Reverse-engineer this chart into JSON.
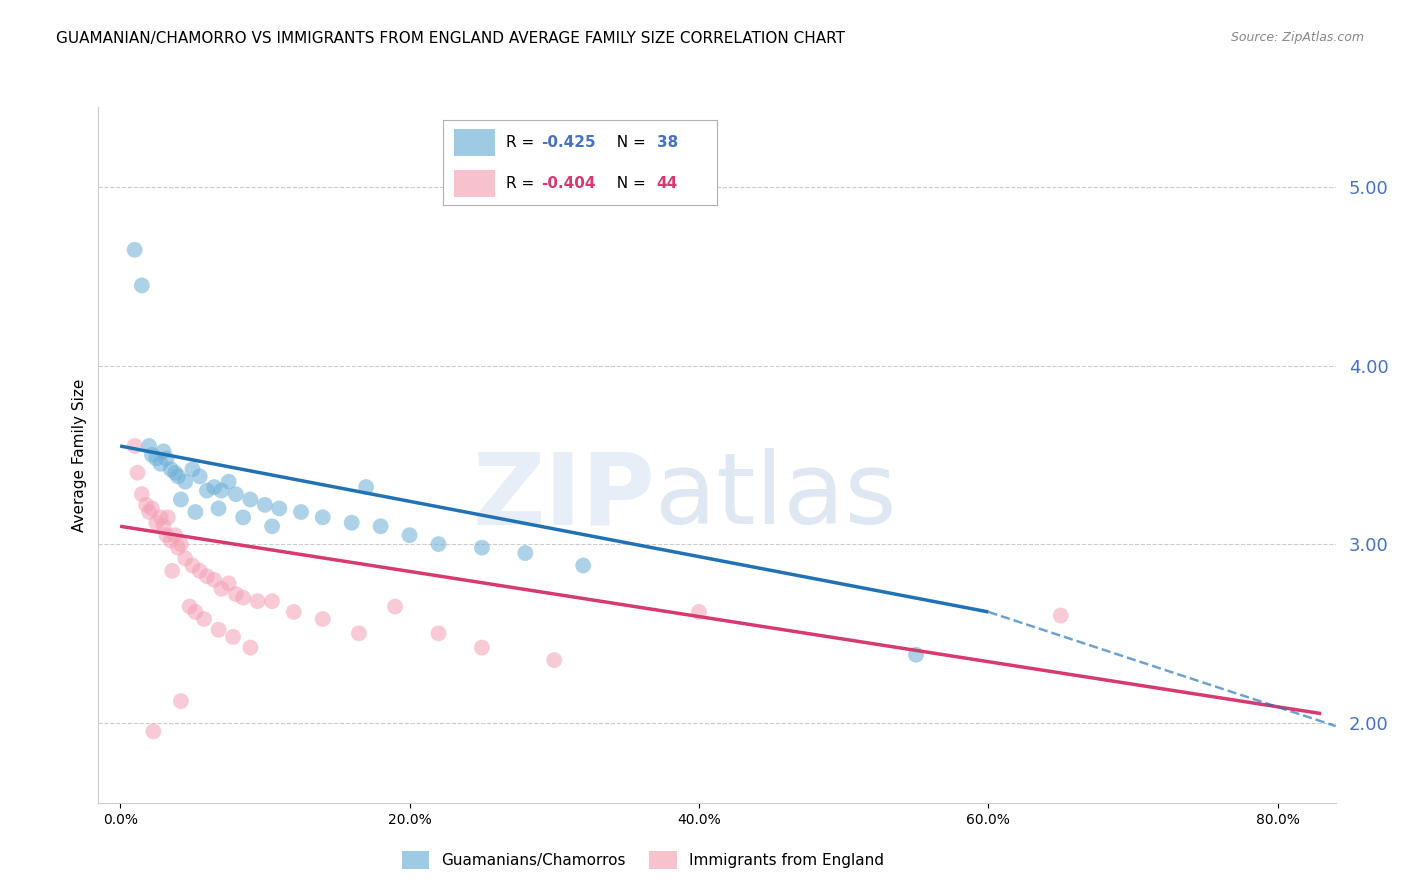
{
  "title": "GUAMANIAN/CHAMORRO VS IMMIGRANTS FROM ENGLAND AVERAGE FAMILY SIZE CORRELATION CHART",
  "source": "Source: ZipAtlas.com",
  "ylabel": "Average Family Size",
  "xlabel_ticks": [
    "0.0%",
    "20.0%",
    "40.0%",
    "60.0%",
    "80.0%"
  ],
  "xlabel_vals": [
    0.0,
    20.0,
    40.0,
    60.0,
    80.0
  ],
  "right_yticks": [
    2.0,
    3.0,
    4.0,
    5.0
  ],
  "ylim": [
    1.55,
    5.45
  ],
  "xlim": [
    -1.5,
    84.0
  ],
  "blue_R": -0.425,
  "blue_N": 38,
  "pink_R": -0.404,
  "pink_N": 44,
  "blue_label": "Guamanians/Chamorros",
  "pink_label": "Immigrants from England",
  "blue_color": "#6baed6",
  "pink_color": "#f4a0b5",
  "blue_line_color": "#2171b5",
  "pink_line_color": "#d63a6e",
  "blue_scatter_x": [
    1.0,
    1.5,
    2.0,
    2.2,
    2.5,
    2.8,
    3.0,
    3.2,
    3.5,
    3.8,
    4.0,
    4.5,
    5.0,
    5.5,
    6.0,
    6.5,
    7.0,
    7.5,
    8.0,
    9.0,
    10.0,
    11.0,
    12.5,
    14.0,
    16.0,
    18.0,
    20.0,
    22.0,
    25.0,
    28.0,
    32.0,
    4.2,
    5.2,
    6.8,
    8.5,
    10.5,
    55.0,
    17.0
  ],
  "blue_scatter_y": [
    4.65,
    4.45,
    3.55,
    3.5,
    3.48,
    3.45,
    3.52,
    3.48,
    3.42,
    3.4,
    3.38,
    3.35,
    3.42,
    3.38,
    3.3,
    3.32,
    3.3,
    3.35,
    3.28,
    3.25,
    3.22,
    3.2,
    3.18,
    3.15,
    3.12,
    3.1,
    3.05,
    3.0,
    2.98,
    2.95,
    2.88,
    3.25,
    3.18,
    3.2,
    3.15,
    3.1,
    2.38,
    3.32
  ],
  "pink_scatter_x": [
    1.0,
    1.2,
    1.5,
    1.8,
    2.0,
    2.2,
    2.5,
    2.8,
    3.0,
    3.2,
    3.5,
    3.8,
    4.0,
    4.2,
    4.5,
    5.0,
    5.5,
    6.0,
    6.5,
    7.0,
    7.5,
    8.0,
    8.5,
    9.5,
    10.5,
    12.0,
    14.0,
    16.5,
    2.3,
    3.3,
    3.6,
    4.8,
    5.2,
    5.8,
    6.8,
    7.8,
    9.0,
    19.0,
    22.0,
    25.0,
    30.0,
    40.0,
    65.0,
    4.2
  ],
  "pink_scatter_y": [
    3.55,
    3.4,
    3.28,
    3.22,
    3.18,
    3.2,
    3.12,
    3.15,
    3.1,
    3.05,
    3.02,
    3.05,
    2.98,
    3.0,
    2.92,
    2.88,
    2.85,
    2.82,
    2.8,
    2.75,
    2.78,
    2.72,
    2.7,
    2.68,
    2.68,
    2.62,
    2.58,
    2.5,
    1.95,
    3.15,
    2.85,
    2.65,
    2.62,
    2.58,
    2.52,
    2.48,
    2.42,
    2.65,
    2.5,
    2.42,
    2.35,
    2.62,
    2.6,
    2.12
  ],
  "blue_trend_x0": 0.0,
  "blue_trend_y0": 3.55,
  "blue_trend_x1": 60.0,
  "blue_trend_y1": 2.62,
  "blue_dash_x0": 60.0,
  "blue_dash_y0": 2.62,
  "blue_dash_x1": 84.0,
  "blue_dash_y1": 1.98,
  "pink_trend_x0": 0.0,
  "pink_trend_y0": 3.1,
  "pink_trend_x1": 83.0,
  "pink_trend_y1": 2.05,
  "watermark_zip": "ZIP",
  "watermark_atlas": "atlas",
  "background_color": "#ffffff",
  "grid_color": "#cccccc",
  "right_tick_color": "#4472c4",
  "title_fontsize": 11,
  "axis_label_fontsize": 11,
  "tick_fontsize": 10,
  "legend_fontsize": 12
}
